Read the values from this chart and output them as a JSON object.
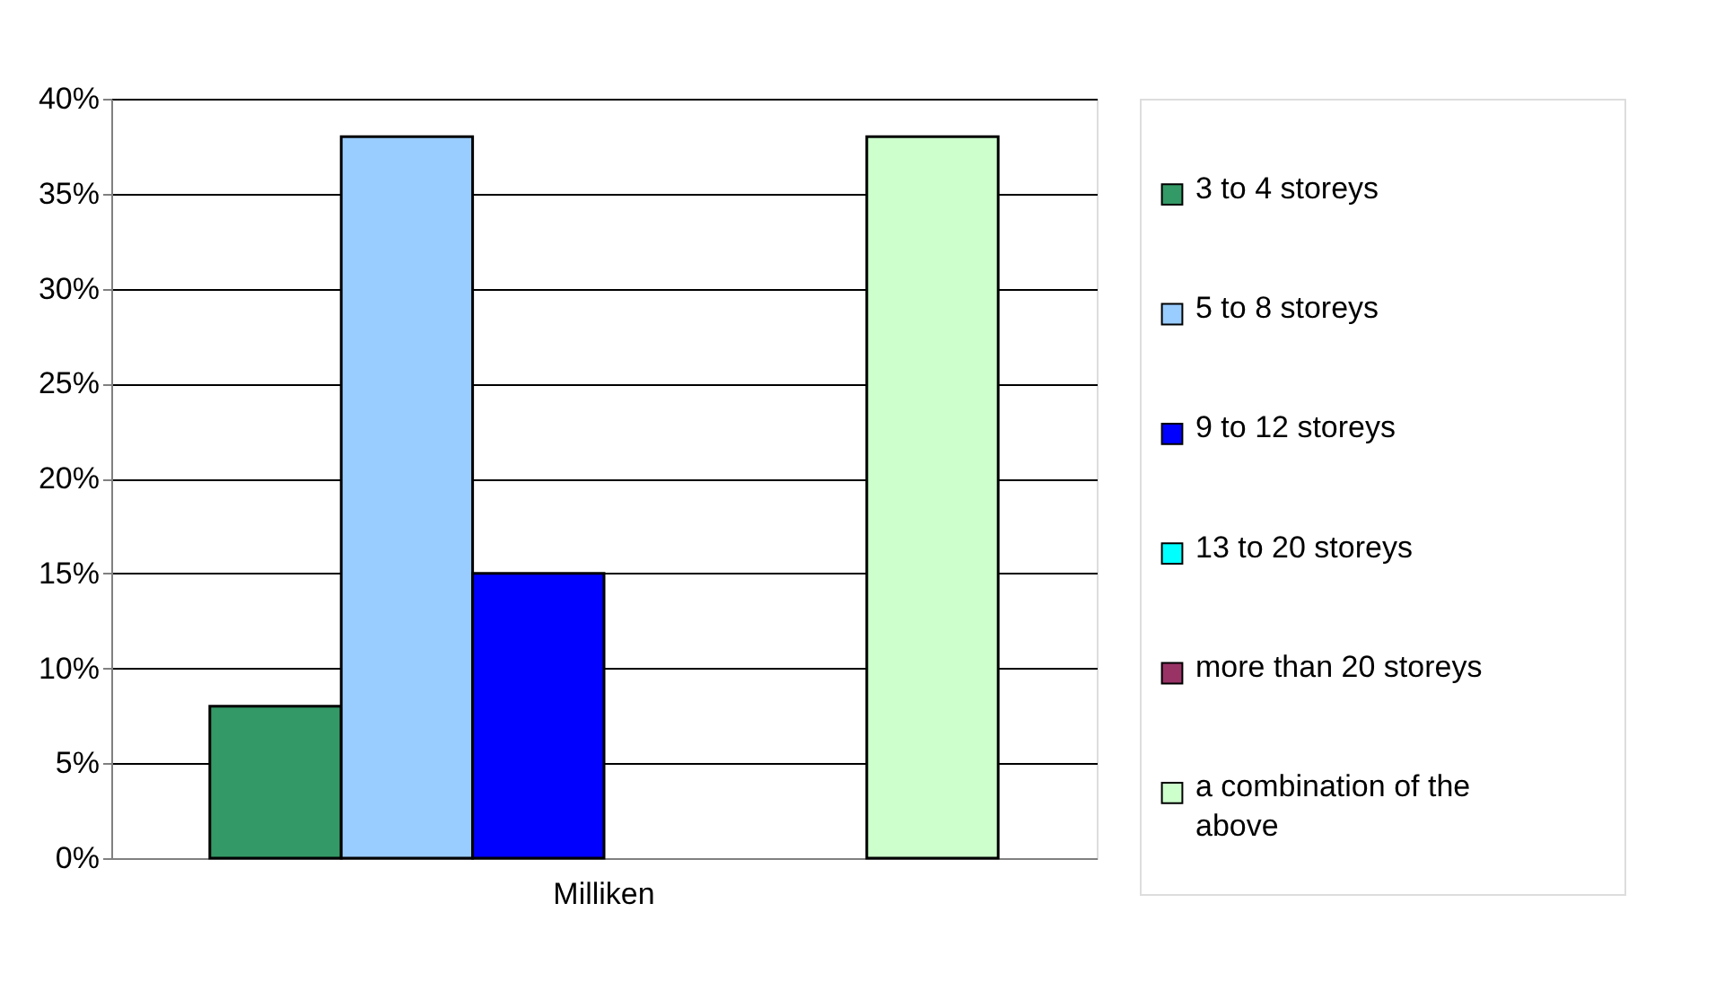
{
  "chart_data": {
    "type": "bar",
    "categories": [
      "Milliken"
    ],
    "series": [
      {
        "name": "3 to 4 storeys",
        "color": "#339966",
        "values": [
          8
        ]
      },
      {
        "name": "5 to 8 storeys",
        "color": "#99ccff",
        "values": [
          38
        ]
      },
      {
        "name": "9 to 12 storeys",
        "color": "#0000ff",
        "values": [
          15
        ]
      },
      {
        "name": "13 to 20 storeys",
        "color": "#00ffff",
        "values": [
          0
        ]
      },
      {
        "name": "more than 20 storeys",
        "color": "#993366",
        "values": [
          0
        ]
      },
      {
        "name": "a combination of the above",
        "color": "#ccffcc",
        "values": [
          38
        ]
      }
    ],
    "ylim": [
      0,
      40
    ],
    "yticks": [
      {
        "value": 0,
        "label": "0%"
      },
      {
        "value": 5,
        "label": "5%"
      },
      {
        "value": 10,
        "label": "10%"
      },
      {
        "value": 15,
        "label": "15%"
      },
      {
        "value": 20,
        "label": "20%"
      },
      {
        "value": 25,
        "label": "25%"
      },
      {
        "value": 30,
        "label": "30%"
      },
      {
        "value": 35,
        "label": "35%"
      },
      {
        "value": 40,
        "label": "40%"
      }
    ],
    "grid": "y",
    "legend": "right"
  }
}
